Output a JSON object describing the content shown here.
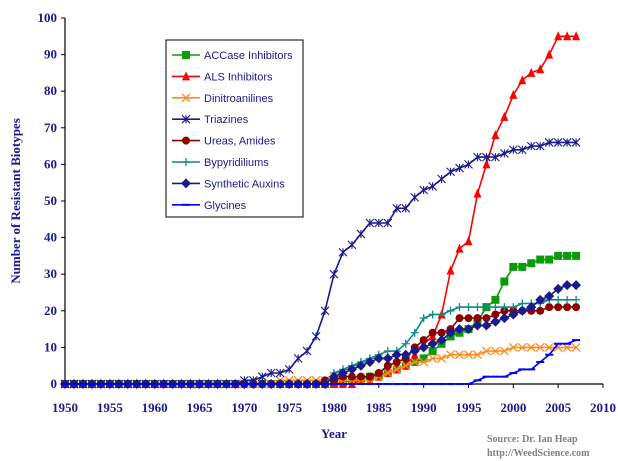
{
  "chart_data": {
    "type": "line",
    "xlabel": "Year",
    "ylabel": "Number of Resistant Biotypes",
    "xlim": [
      1950,
      2010
    ],
    "ylim": [
      0,
      100
    ],
    "xticks": [
      1950,
      1955,
      1960,
      1965,
      1970,
      1975,
      1980,
      1985,
      1990,
      1995,
      2000,
      2005,
      2010
    ],
    "yticks": [
      0,
      10,
      20,
      30,
      40,
      50,
      60,
      70,
      80,
      90,
      100
    ],
    "legend_position": "top-left",
    "grid": false,
    "source_lines": [
      "Source: Dr. Ian Heap",
      "http://WeedScience.com"
    ],
    "series": [
      {
        "name": "ACCase Inhibitors",
        "color": "#0a9b0a",
        "marker": "square",
        "points": [
          [
            1950,
            0
          ],
          [
            1980,
            0
          ],
          [
            1982,
            1
          ],
          [
            1984,
            2
          ],
          [
            1986,
            3
          ],
          [
            1987,
            4
          ],
          [
            1988,
            5
          ],
          [
            1989,
            6
          ],
          [
            1990,
            7
          ],
          [
            1991,
            9
          ],
          [
            1992,
            11
          ],
          [
            1993,
            13
          ],
          [
            1994,
            14
          ],
          [
            1995,
            15
          ],
          [
            1996,
            17
          ],
          [
            1997,
            21
          ],
          [
            1998,
            23
          ],
          [
            1999,
            28
          ],
          [
            2000,
            32
          ],
          [
            2001,
            32
          ],
          [
            2002,
            33
          ],
          [
            2003,
            34
          ],
          [
            2004,
            34
          ],
          [
            2005,
            35
          ],
          [
            2006,
            35
          ],
          [
            2007,
            35
          ]
        ]
      },
      {
        "name": "ALS Inhibitors",
        "color": "#ff0000",
        "marker": "triangle",
        "points": [
          [
            1950,
            0
          ],
          [
            1982,
            0
          ],
          [
            1983,
            1
          ],
          [
            1984,
            1
          ],
          [
            1985,
            2
          ],
          [
            1986,
            3
          ],
          [
            1987,
            4
          ],
          [
            1988,
            5
          ],
          [
            1989,
            8
          ],
          [
            1990,
            11
          ],
          [
            1991,
            13
          ],
          [
            1992,
            19
          ],
          [
            1993,
            31
          ],
          [
            1994,
            37
          ],
          [
            1995,
            39
          ],
          [
            1996,
            52
          ],
          [
            1997,
            60
          ],
          [
            1998,
            68
          ],
          [
            1999,
            73
          ],
          [
            2000,
            79
          ],
          [
            2001,
            83
          ],
          [
            2002,
            85
          ],
          [
            2003,
            86
          ],
          [
            2004,
            90
          ],
          [
            2005,
            95
          ],
          [
            2006,
            95
          ],
          [
            2007,
            95
          ]
        ]
      },
      {
        "name": "Dinitroanilines",
        "color": "#ff8c1a",
        "marker": "x",
        "points": [
          [
            1950,
            0
          ],
          [
            1973,
            0
          ],
          [
            1974,
            1
          ],
          [
            1984,
            1
          ],
          [
            1985,
            2
          ],
          [
            1986,
            3
          ],
          [
            1987,
            4
          ],
          [
            1988,
            5
          ],
          [
            1989,
            6
          ],
          [
            1990,
            6
          ],
          [
            1991,
            7
          ],
          [
            1992,
            7
          ],
          [
            1993,
            8
          ],
          [
            1994,
            8
          ],
          [
            1995,
            8
          ],
          [
            1996,
            8
          ],
          [
            1997,
            9
          ],
          [
            1998,
            9
          ],
          [
            1999,
            9
          ],
          [
            2000,
            10
          ],
          [
            2001,
            10
          ],
          [
            2002,
            10
          ],
          [
            2003,
            10
          ],
          [
            2004,
            10
          ],
          [
            2005,
            10
          ],
          [
            2006,
            10
          ],
          [
            2007,
            10
          ]
        ]
      },
      {
        "name": "Triazines",
        "color": "#1a1a8c",
        "marker": "star",
        "points": [
          [
            1950,
            0
          ],
          [
            1969,
            0
          ],
          [
            1970,
            1
          ],
          [
            1971,
            1
          ],
          [
            1972,
            2
          ],
          [
            1973,
            3
          ],
          [
            1974,
            3
          ],
          [
            1975,
            4
          ],
          [
            1976,
            7
          ],
          [
            1977,
            9
          ],
          [
            1978,
            13
          ],
          [
            1979,
            20
          ],
          [
            1980,
            30
          ],
          [
            1981,
            36
          ],
          [
            1982,
            38
          ],
          [
            1983,
            41
          ],
          [
            1984,
            44
          ],
          [
            1985,
            44
          ],
          [
            1986,
            44
          ],
          [
            1987,
            48
          ],
          [
            1988,
            48
          ],
          [
            1989,
            51
          ],
          [
            1990,
            53
          ],
          [
            1991,
            54
          ],
          [
            1992,
            56
          ],
          [
            1993,
            58
          ],
          [
            1994,
            59
          ],
          [
            1995,
            60
          ],
          [
            1996,
            62
          ],
          [
            1997,
            62
          ],
          [
            1998,
            62
          ],
          [
            1999,
            63
          ],
          [
            2000,
            64
          ],
          [
            2001,
            64
          ],
          [
            2002,
            65
          ],
          [
            2003,
            65
          ],
          [
            2004,
            66
          ],
          [
            2005,
            66
          ],
          [
            2006,
            66
          ],
          [
            2007,
            66
          ]
        ]
      },
      {
        "name": "Ureas, Amides",
        "color": "#8b0000",
        "marker": "circle",
        "points": [
          [
            1950,
            0
          ],
          [
            1978,
            0
          ],
          [
            1979,
            1
          ],
          [
            1980,
            1
          ],
          [
            1981,
            2
          ],
          [
            1982,
            2
          ],
          [
            1983,
            2
          ],
          [
            1984,
            2
          ],
          [
            1985,
            3
          ],
          [
            1986,
            5
          ],
          [
            1987,
            6
          ],
          [
            1988,
            7
          ],
          [
            1989,
            10
          ],
          [
            1990,
            12
          ],
          [
            1991,
            14
          ],
          [
            1992,
            14
          ],
          [
            1993,
            15
          ],
          [
            1994,
            18
          ],
          [
            1995,
            18
          ],
          [
            1996,
            18
          ],
          [
            1997,
            18
          ],
          [
            1998,
            19
          ],
          [
            1999,
            20
          ],
          [
            2000,
            20
          ],
          [
            2001,
            20
          ],
          [
            2002,
            20
          ],
          [
            2003,
            20
          ],
          [
            2004,
            21
          ],
          [
            2005,
            21
          ],
          [
            2006,
            21
          ],
          [
            2007,
            21
          ]
        ]
      },
      {
        "name": "Bypyridiliums",
        "color": "#0f8c8c",
        "marker": "plus",
        "points": [
          [
            1950,
            0
          ],
          [
            1979,
            0
          ],
          [
            1980,
            3
          ],
          [
            1981,
            4
          ],
          [
            1982,
            5
          ],
          [
            1983,
            6
          ],
          [
            1984,
            7
          ],
          [
            1985,
            8
          ],
          [
            1986,
            9
          ],
          [
            1987,
            9
          ],
          [
            1988,
            11
          ],
          [
            1989,
            14
          ],
          [
            1990,
            18
          ],
          [
            1991,
            19
          ],
          [
            1992,
            19
          ],
          [
            1993,
            20
          ],
          [
            1994,
            21
          ],
          [
            1995,
            21
          ],
          [
            1996,
            21
          ],
          [
            1997,
            21
          ],
          [
            1998,
            21
          ],
          [
            1999,
            21
          ],
          [
            2000,
            21
          ],
          [
            2001,
            22
          ],
          [
            2002,
            22
          ],
          [
            2003,
            22
          ],
          [
            2004,
            23
          ],
          [
            2005,
            23
          ],
          [
            2006,
            23
          ],
          [
            2007,
            23
          ]
        ]
      },
      {
        "name": "Synthetic Auxins",
        "color": "#1a1a8c",
        "marker": "diamond",
        "points": [
          [
            1950,
            0
          ],
          [
            1979,
            0
          ],
          [
            1980,
            2
          ],
          [
            1981,
            3
          ],
          [
            1982,
            4
          ],
          [
            1983,
            5
          ],
          [
            1984,
            6
          ],
          [
            1985,
            7
          ],
          [
            1986,
            7
          ],
          [
            1987,
            8
          ],
          [
            1988,
            8
          ],
          [
            1989,
            9
          ],
          [
            1990,
            10
          ],
          [
            1991,
            11
          ],
          [
            1992,
            12
          ],
          [
            1993,
            14
          ],
          [
            1994,
            15
          ],
          [
            1995,
            15
          ],
          [
            1996,
            16
          ],
          [
            1997,
            16
          ],
          [
            1998,
            17
          ],
          [
            1999,
            18
          ],
          [
            2000,
            19
          ],
          [
            2001,
            20
          ],
          [
            2002,
            21
          ],
          [
            2003,
            23
          ],
          [
            2004,
            24
          ],
          [
            2005,
            26
          ],
          [
            2006,
            27
          ],
          [
            2007,
            27
          ]
        ]
      },
      {
        "name": "Glycines",
        "color": "#0000ff",
        "marker": "dash",
        "points": [
          [
            1950,
            0
          ],
          [
            1995,
            0
          ],
          [
            1996,
            1
          ],
          [
            1997,
            2
          ],
          [
            1998,
            2
          ],
          [
            1999,
            2
          ],
          [
            2000,
            3
          ],
          [
            2001,
            4
          ],
          [
            2002,
            4
          ],
          [
            2003,
            6
          ],
          [
            2004,
            8
          ],
          [
            2005,
            11
          ],
          [
            2006,
            11
          ],
          [
            2007,
            12
          ]
        ]
      }
    ]
  }
}
